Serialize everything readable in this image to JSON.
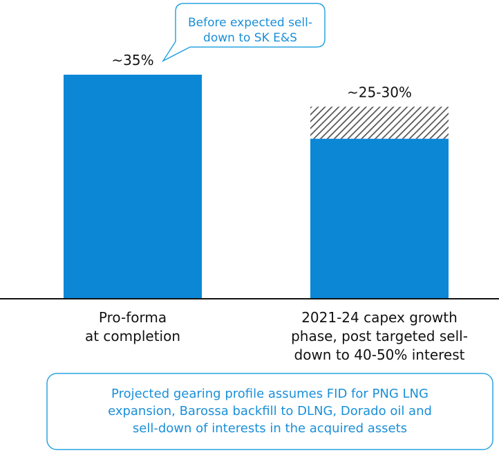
{
  "chart_data": {
    "type": "bar",
    "categories": [
      "Pro-forma\nat completion",
      "2021-24 capex growth\nphase, post targeted sell-\ndown to 40-50% interest"
    ],
    "series": [
      {
        "color": "#0b87d6",
        "values": [
          35,
          25
        ]
      },
      {
        "color": "#555555",
        "hatch": true,
        "values": [
          null,
          5
        ]
      }
    ],
    "bar_labels": [
      "~35%",
      "~25-30%"
    ],
    "ylim": [
      0,
      35
    ],
    "callout": "Before expected sell-\ndown to SK E&S",
    "footnote": "Projected gearing profile assumes FID for PNG LNG\nexpansion, Barossa backfill to DLNG, Dorado oil and\nsell-down of interests in the acquired assets"
  }
}
